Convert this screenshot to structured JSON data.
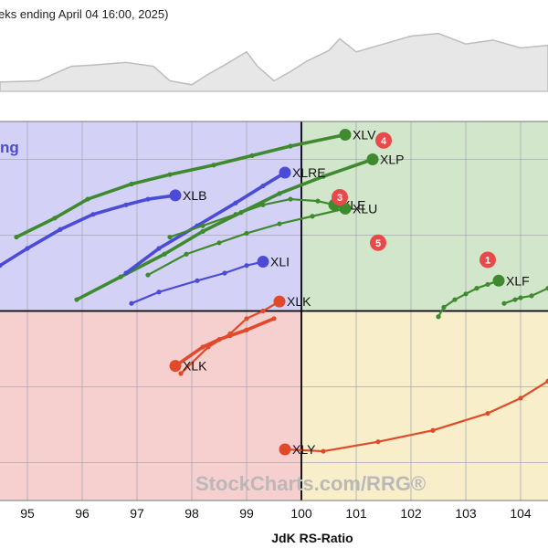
{
  "header": {
    "title": "eks ending April 04 16:00, 2025)"
  },
  "watermark": "StockCharts.com/RRG®",
  "chart_data": {
    "type": "scatter",
    "title": "",
    "xlabel": "JdK RS-Ratio",
    "ylabel": "",
    "xlim": [
      94.5,
      104.5
    ],
    "ylim": [
      -10,
      10
    ],
    "x_ticks": [
      95,
      96,
      97,
      98,
      99,
      100,
      101,
      102,
      103,
      "104"
    ],
    "quadrant_label": "ng",
    "quadrant_colors": {
      "top_left": "#d3d2f6",
      "top_right": "#d1e6ca",
      "bottom_left": "#f6cfcf",
      "bottom_right": "#f8efca"
    },
    "background_line": [
      [
        94.5,
        0.86
      ],
      [
        95.2,
        0.84
      ],
      [
        95.8,
        0.62
      ],
      [
        96.2,
        0.6
      ],
      [
        96.8,
        0.56
      ],
      [
        97.3,
        0.62
      ],
      [
        97.6,
        0.84
      ],
      [
        98.0,
        0.9
      ],
      [
        98.3,
        0.74
      ],
      [
        98.6,
        0.6
      ],
      [
        99.0,
        0.4
      ],
      [
        99.2,
        0.62
      ],
      [
        99.5,
        0.84
      ],
      [
        99.8,
        0.7
      ],
      [
        100.1,
        0.54
      ],
      [
        100.5,
        0.38
      ],
      [
        100.7,
        0.2
      ],
      [
        101.0,
        0.4
      ],
      [
        101.5,
        0.28
      ],
      [
        102.0,
        0.16
      ],
      [
        102.5,
        0.12
      ],
      [
        103.0,
        0.28
      ],
      [
        103.5,
        0.22
      ],
      [
        104.0,
        0.34
      ],
      [
        104.5,
        0.3
      ]
    ],
    "series": [
      {
        "name": "XLV",
        "color": "#3f8a2f",
        "bold": true,
        "points": [
          [
            94.8,
            3.9
          ],
          [
            95.5,
            4.9
          ],
          [
            96.1,
            5.9
          ],
          [
            96.9,
            6.7
          ],
          [
            97.6,
            7.2
          ],
          [
            98.4,
            7.7
          ],
          [
            99.1,
            8.2
          ],
          [
            99.8,
            8.7
          ],
          [
            100.8,
            9.3
          ]
        ]
      },
      {
        "name": "XLP",
        "color": "#3f8a2f",
        "bold": true,
        "points": [
          [
            95.9,
            0.6
          ],
          [
            96.7,
            1.8
          ],
          [
            97.5,
            3.0
          ],
          [
            98.2,
            4.2
          ],
          [
            98.9,
            5.2
          ],
          [
            99.6,
            6.2
          ],
          [
            100.4,
            7.1
          ],
          [
            101.3,
            8.0
          ]
        ]
      },
      {
        "name": "XLRE",
        "color": "#4b4bd6",
        "bold": true,
        "points": [
          [
            96.8,
            2.0
          ],
          [
            97.4,
            3.3
          ],
          [
            98.1,
            4.5
          ],
          [
            98.8,
            5.7
          ],
          [
            99.3,
            6.6
          ],
          [
            99.7,
            7.3
          ]
        ]
      },
      {
        "name": "XLB",
        "color": "#4b4bd6",
        "bold": true,
        "points": [
          [
            94.5,
            2.4
          ],
          [
            95.0,
            3.3
          ],
          [
            95.6,
            4.3
          ],
          [
            96.2,
            5.1
          ],
          [
            96.8,
            5.6
          ],
          [
            97.2,
            5.9
          ],
          [
            97.7,
            6.1
          ]
        ]
      },
      {
        "name": "XLE",
        "color": "#3f8a2f",
        "bold": false,
        "points": [
          [
            97.6,
            3.9
          ],
          [
            98.2,
            4.5
          ],
          [
            98.8,
            5.1
          ],
          [
            99.3,
            5.6
          ],
          [
            99.8,
            5.9
          ],
          [
            100.3,
            5.8
          ],
          [
            100.6,
            5.6
          ]
        ]
      },
      {
        "name": "XLU",
        "color": "#3f8a2f",
        "bold": false,
        "points": [
          [
            97.2,
            1.9
          ],
          [
            97.9,
            3.0
          ],
          [
            98.5,
            3.6
          ],
          [
            99.0,
            4.1
          ],
          [
            99.6,
            4.6
          ],
          [
            100.2,
            5.0
          ],
          [
            100.8,
            5.4
          ]
        ]
      },
      {
        "name": "XLI",
        "color": "#4b4bd6",
        "bold": false,
        "points": [
          [
            96.9,
            0.4
          ],
          [
            97.4,
            1.0
          ],
          [
            98.1,
            1.6
          ],
          [
            98.6,
            2.0
          ],
          [
            99.0,
            2.4
          ],
          [
            99.3,
            2.6
          ]
        ]
      },
      {
        "name": "XLK",
        "color": "#e04a2a",
        "bold": false,
        "points": [
          [
            97.8,
            -3.3
          ],
          [
            98.3,
            -1.9
          ],
          [
            98.7,
            -1.2
          ],
          [
            99.0,
            -0.4
          ],
          [
            99.3,
            0.0
          ],
          [
            99.6,
            0.5
          ]
        ]
      },
      {
        "name": "XLK",
        "color": "#e04a2a",
        "bold": true,
        "points": [
          [
            99.5,
            -0.4
          ],
          [
            99.0,
            -1.0
          ],
          [
            98.7,
            -1.3
          ],
          [
            98.5,
            -1.5
          ],
          [
            98.2,
            -1.9
          ],
          [
            97.7,
            -2.9
          ]
        ]
      },
      {
        "name": "XLF",
        "color": "#3f8a2f",
        "bold": false,
        "points": [
          [
            102.5,
            -0.3
          ],
          [
            102.6,
            0.2
          ],
          [
            102.8,
            0.6
          ],
          [
            103.0,
            0.9
          ],
          [
            103.2,
            1.2
          ],
          [
            103.4,
            1.4
          ],
          [
            103.6,
            1.6
          ]
        ]
      },
      {
        "name": "",
        "color": "#3f8a2f",
        "bold": false,
        "points": [
          [
            103.7,
            0.4
          ],
          [
            103.9,
            0.6
          ],
          [
            104.0,
            0.7
          ],
          [
            104.2,
            0.8
          ],
          [
            104.5,
            1.2
          ]
        ]
      },
      {
        "name": "XLY",
        "color": "#e04a2a",
        "bold": false,
        "points": [
          [
            104.5,
            -3.7
          ],
          [
            104.0,
            -4.6
          ],
          [
            103.4,
            -5.4
          ],
          [
            102.4,
            -6.3
          ],
          [
            101.4,
            -6.9
          ],
          [
            100.4,
            -7.4
          ],
          [
            99.7,
            -7.3
          ]
        ]
      }
    ],
    "badges": [
      {
        "text": "1",
        "x": 103.4,
        "y": 2.7
      },
      {
        "text": "3",
        "x": 100.7,
        "y": 6.0
      },
      {
        "text": "4",
        "x": 101.5,
        "y": 9.0
      },
      {
        "text": "5",
        "x": 101.4,
        "y": 3.6
      }
    ]
  }
}
